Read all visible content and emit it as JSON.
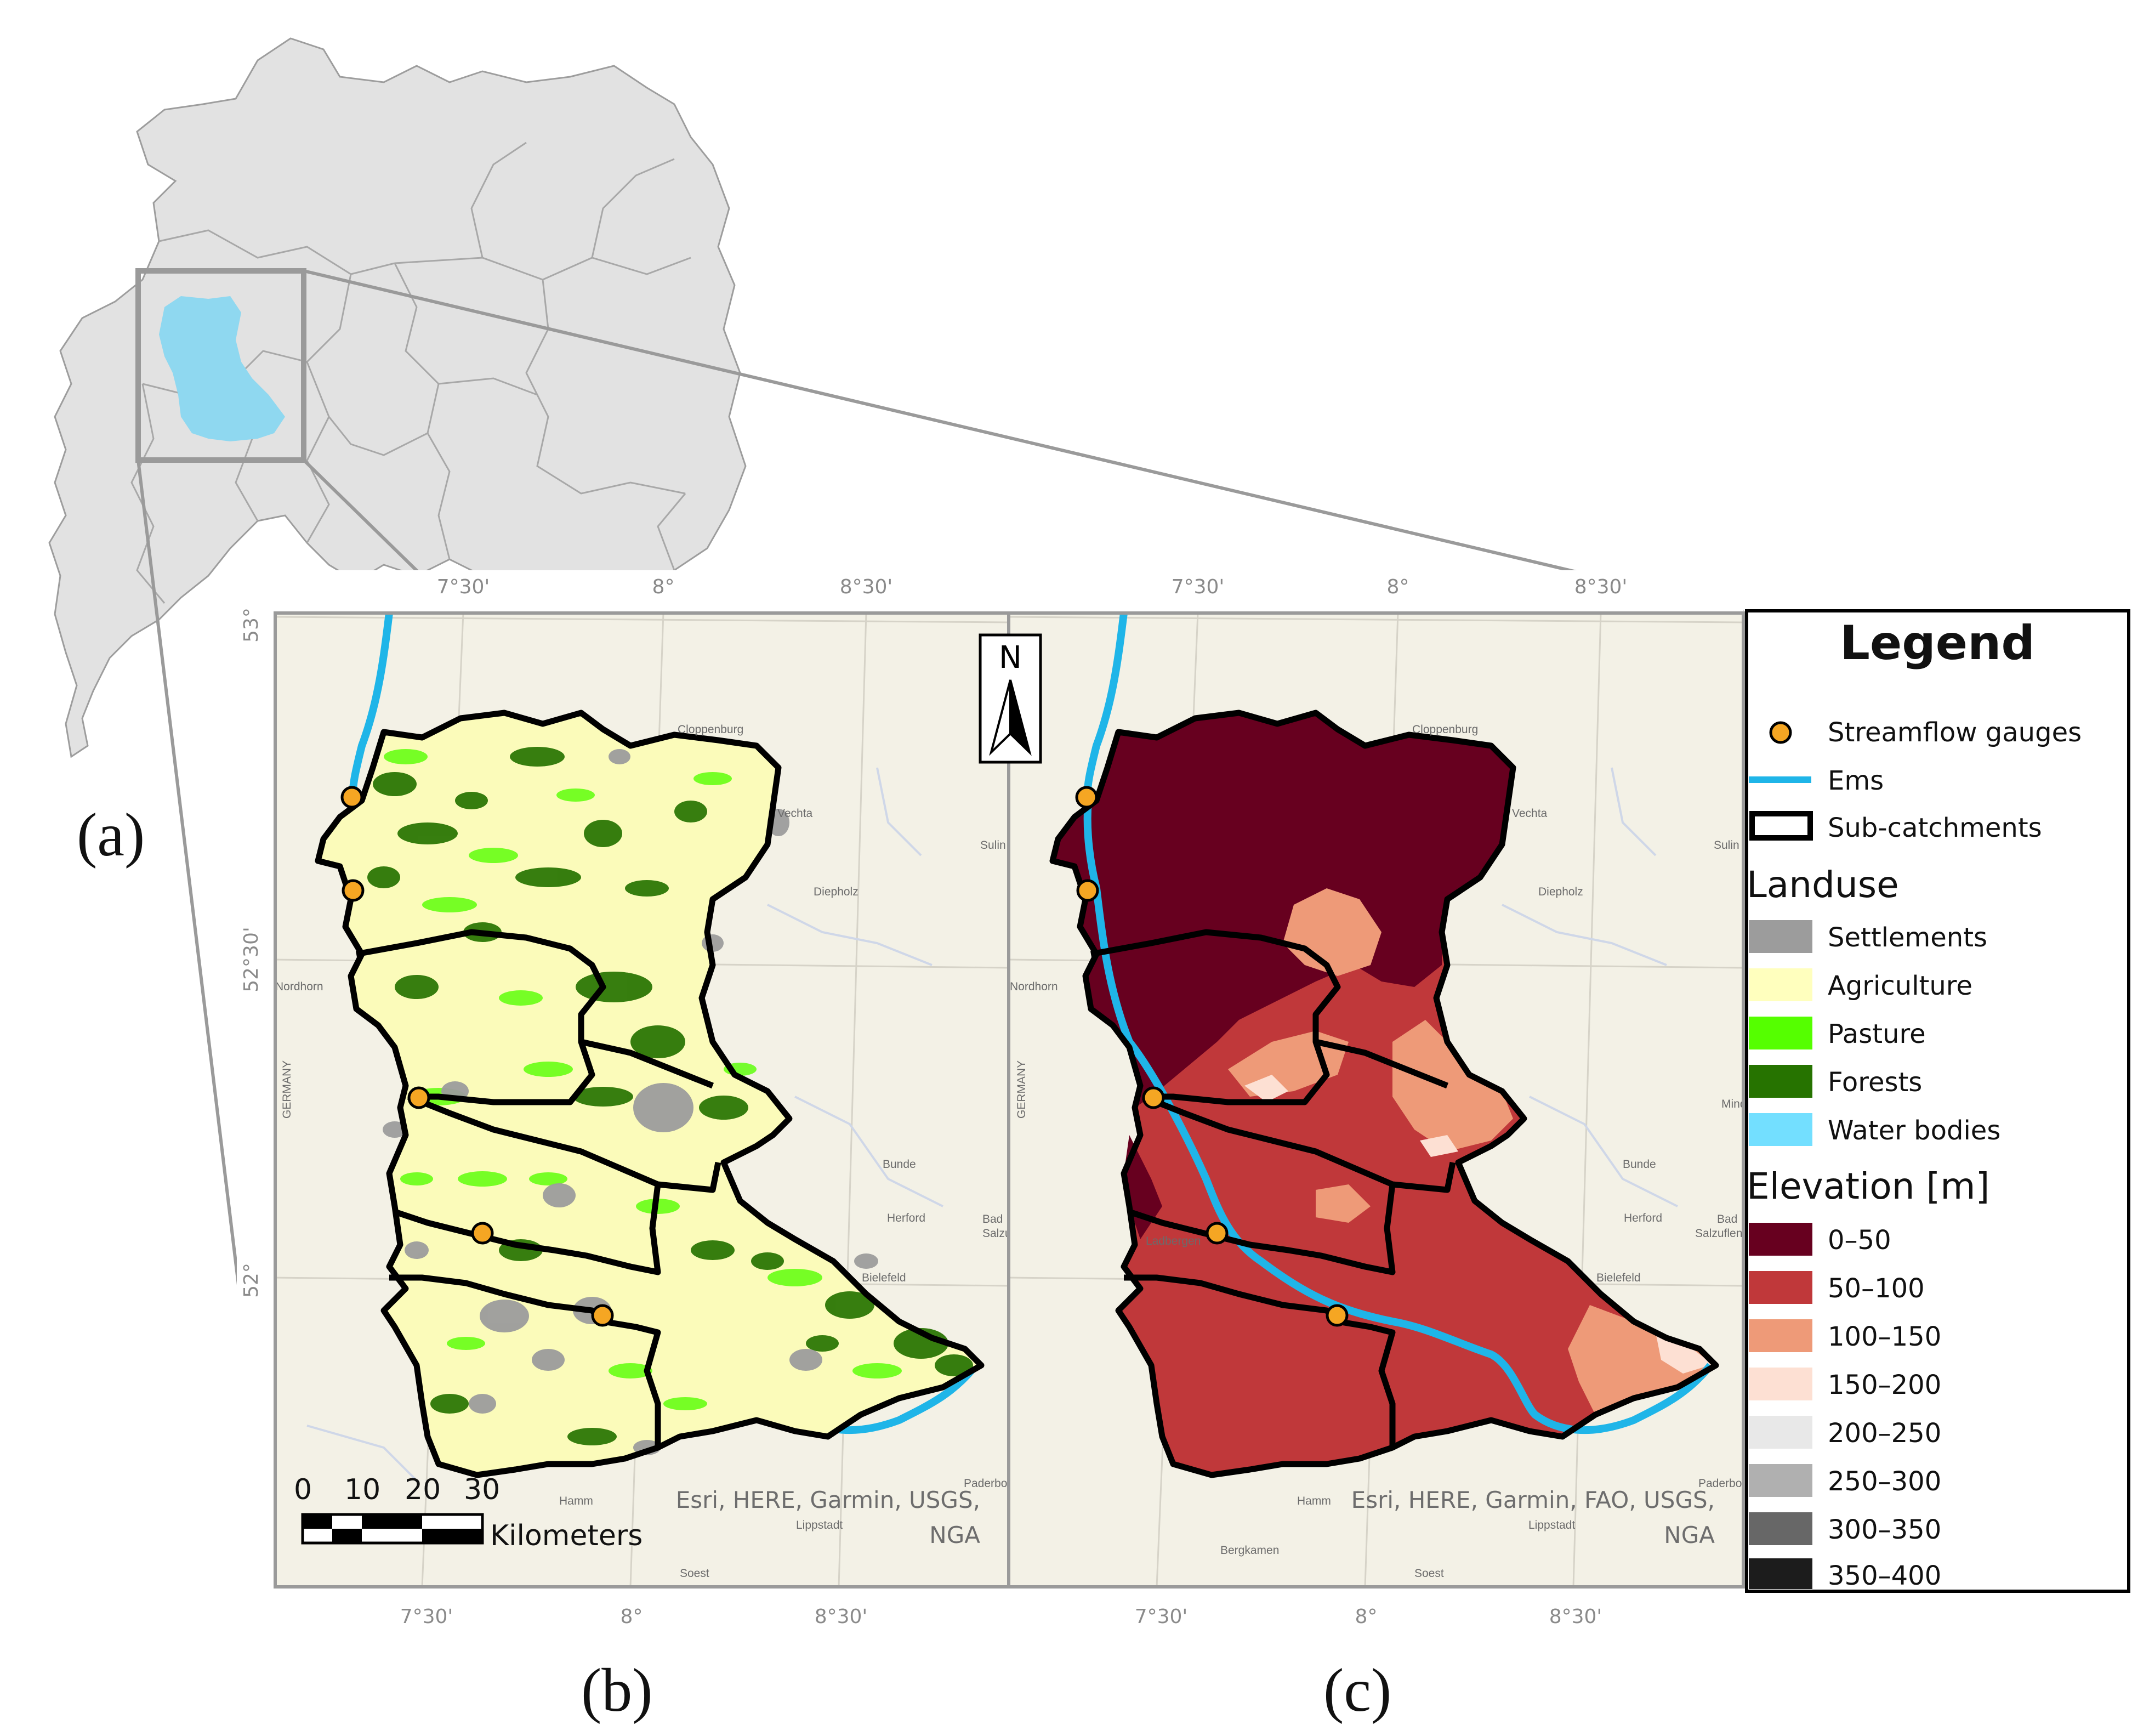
{
  "panel_labels": {
    "a": "(a)",
    "b": "(b)",
    "c": "(c)"
  },
  "map_b": {
    "top_ticks": [
      "7°30'",
      "8°",
      "8°30'"
    ],
    "bottom_ticks": [
      "7°30'",
      "8°",
      "8°30'"
    ],
    "left_ticks": [
      "53°",
      "52°30'",
      "52°"
    ],
    "attribution": [
      "Esri, HERE, Garmin, USGS,",
      "NGA"
    ],
    "towns": [
      "Cloppenburg",
      "Vechta",
      "Sulin",
      "Diepholz",
      "Nordhorn",
      "GERMANY",
      "Bunde",
      "Herford",
      "Bad",
      "Salzuflen",
      "Bielefeld",
      "Paderborn",
      "Hamm",
      "Lippstadt",
      "Soest"
    ]
  },
  "map_c": {
    "top_ticks": [
      "7°30'",
      "8°",
      "8°30'"
    ],
    "bottom_ticks": [
      "7°30'",
      "8°",
      "8°30'"
    ],
    "attribution": [
      "Esri, HERE, Garmin, FAO, USGS,",
      "NGA"
    ],
    "towns": [
      "Cloppenburg",
      "Vechta",
      "Sulin",
      "Diepholz",
      "Nordhorn",
      "GERMANY",
      "Mind",
      "Bunde",
      "Herford",
      "Bad",
      "Salzuflen",
      "Bielefeld",
      "Paderbor",
      "Hamm",
      "Lippstadt",
      "Bergkamen",
      "Soest",
      "Ladbergen"
    ]
  },
  "north_arrow": "N",
  "scale_bar": {
    "ticks": [
      "0",
      "10",
      "20",
      "30"
    ],
    "unit": "Kilometers"
  },
  "legend": {
    "title": "Legend",
    "symbols": [
      {
        "label": "Streamflow gauges",
        "kind": "gauge",
        "color": "#f5a623"
      },
      {
        "label": "Ems",
        "kind": "river",
        "color": "#1fb5e8"
      },
      {
        "label": "Sub-catchments",
        "kind": "outline",
        "color": "#000000"
      }
    ],
    "landuse_title": "Landuse",
    "landuse": [
      {
        "label": "Settlements",
        "color": "#9c9c9c"
      },
      {
        "label": "Agriculture",
        "color": "#ffffbe"
      },
      {
        "label": "Pasture",
        "color": "#55ff00"
      },
      {
        "label": "Forests",
        "color": "#267300"
      },
      {
        "label": "Water bodies",
        "color": "#73dfff"
      }
    ],
    "elevation_title": "Elevation [m]",
    "elevation": [
      {
        "label": "0–50",
        "color": "#67001f"
      },
      {
        "label": "50–100",
        "color": "#c0383a"
      },
      {
        "label": "100–150",
        "color": "#ee9a78"
      },
      {
        "label": "150–200",
        "color": "#fde0d3"
      },
      {
        "label": "200–250",
        "color": "#e8e8e8"
      },
      {
        "label": "250–300",
        "color": "#b0b0b0"
      },
      {
        "label": "300–350",
        "color": "#676767"
      },
      {
        "label": "350–400",
        "color": "#1c1c1c"
      }
    ]
  }
}
